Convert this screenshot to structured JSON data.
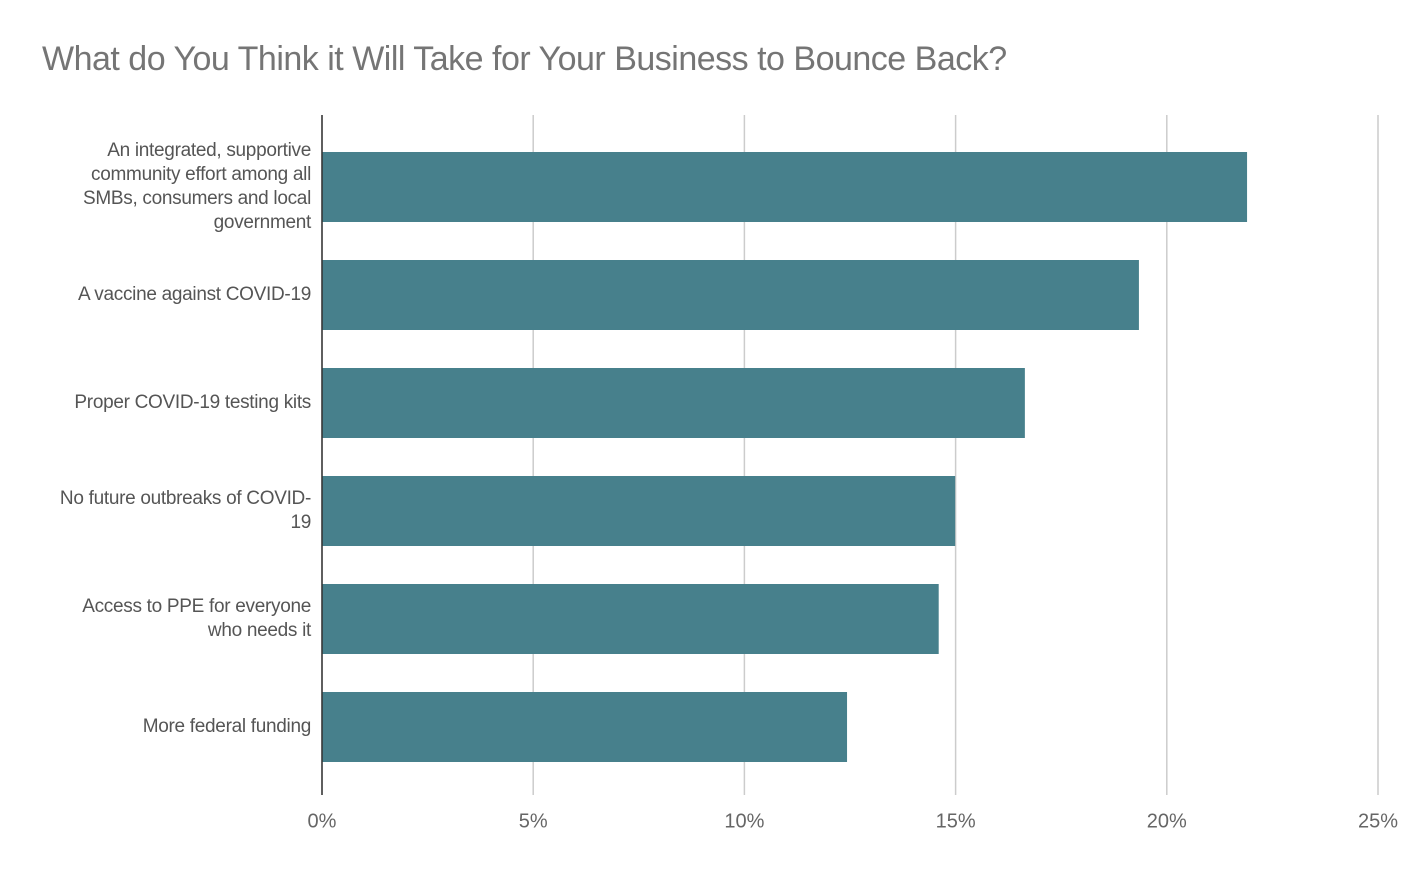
{
  "chart_data": {
    "type": "bar",
    "orientation": "horizontal",
    "title": "What do You Think it Will Take for Your Business to Bounce Back?",
    "categories": [
      "An integrated, supportive community effort among all SMBs, consumers and local government",
      "A vaccine against COVID-19",
      "Proper COVID-19 testing kits",
      "No future outbreaks of COVID-19",
      "Access to PPE for everyone who needs it",
      "More federal funding"
    ],
    "values": [
      21.9,
      19.34,
      16.64,
      14.99,
      14.6,
      12.43
    ],
    "color": "#47808c",
    "xlim": [
      0,
      25
    ],
    "xticks": [
      {
        "value": 0,
        "label": "0%"
      },
      {
        "value": 5,
        "label": "5%"
      },
      {
        "value": 10,
        "label": "10%"
      },
      {
        "value": 15,
        "label": "15%"
      },
      {
        "value": 20,
        "label": "20%"
      },
      {
        "value": 25,
        "label": "25%"
      }
    ],
    "grid": true
  }
}
